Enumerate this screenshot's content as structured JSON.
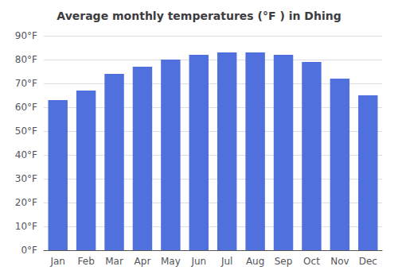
{
  "chart_data": {
    "type": "bar",
    "title": "Average monthly temperatures (°F ) in Dhing",
    "categories": [
      "Jan",
      "Feb",
      "Mar",
      "Apr",
      "May",
      "Jun",
      "Jul",
      "Aug",
      "Sep",
      "Oct",
      "Nov",
      "Dec"
    ],
    "values": [
      63,
      67,
      74,
      77,
      80,
      82,
      83,
      83,
      82,
      79,
      72,
      65
    ],
    "ylim": [
      0,
      90
    ],
    "yticks": [
      {
        "value": 0,
        "label": "0°F"
      },
      {
        "value": 10,
        "label": "10°F"
      },
      {
        "value": 20,
        "label": "20°F"
      },
      {
        "value": 30,
        "label": "30°F"
      },
      {
        "value": 40,
        "label": "40°F"
      },
      {
        "value": 50,
        "label": "50°F"
      },
      {
        "value": 60,
        "label": "60°F"
      },
      {
        "value": 70,
        "label": "70°F"
      },
      {
        "value": 80,
        "label": "80°F"
      },
      {
        "value": 90,
        "label": "90°F"
      }
    ],
    "grid": true
  }
}
